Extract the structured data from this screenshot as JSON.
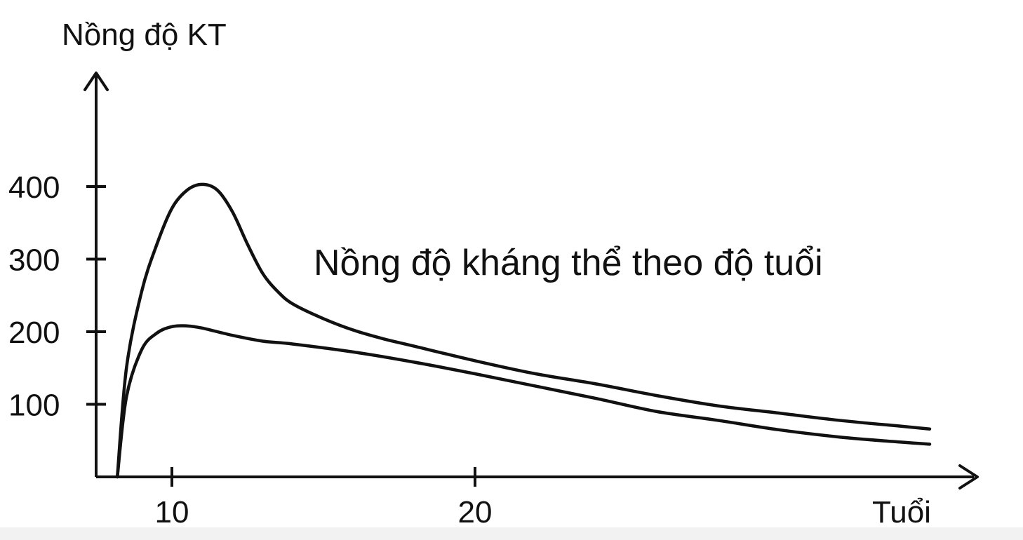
{
  "chart_data": {
    "type": "line",
    "title": "Nồng độ kháng thể theo độ tuổi",
    "ylabel": "Nồng độ KT",
    "xlabel": "Tuổi",
    "xlim": [
      7.5,
      35
    ],
    "ylim": [
      0,
      480
    ],
    "x_ticks": [
      10,
      20
    ],
    "x_tick_labels": [
      "10",
      "20"
    ],
    "y_ticks": [
      100,
      200,
      300,
      400
    ],
    "y_tick_labels": [
      "100",
      "200",
      "300",
      "400"
    ],
    "grid": false,
    "series": [
      {
        "x": [
          8.2,
          8.5,
          9.0,
          9.5,
          10.0,
          10.5,
          11.0,
          11.5,
          12.0,
          12.5,
          13.0,
          13.5,
          14.0,
          15.0,
          16.0,
          17.0,
          18.0,
          20.0,
          22.0,
          24.0,
          26.0,
          28.0,
          30.0,
          32.0,
          34.0,
          35.0
        ],
        "values": [
          0,
          150,
          255,
          320,
          370,
          395,
          403,
          395,
          365,
          320,
          280,
          255,
          238,
          218,
          202,
          190,
          180,
          160,
          142,
          128,
          112,
          98,
          88,
          78,
          70,
          66
        ]
      },
      {
        "x": [
          8.2,
          8.5,
          9.0,
          9.5,
          10.0,
          10.5,
          11.0,
          12.0,
          13.0,
          14.0,
          16.0,
          18.0,
          20.0,
          22.0,
          24.0,
          26.0,
          28.0,
          30.0,
          32.0,
          34.0,
          35.0
        ],
        "values": [
          0,
          110,
          175,
          198,
          207,
          208,
          205,
          195,
          187,
          183,
          172,
          158,
          142,
          125,
          108,
          90,
          78,
          65,
          55,
          48,
          45
        ]
      }
    ]
  }
}
